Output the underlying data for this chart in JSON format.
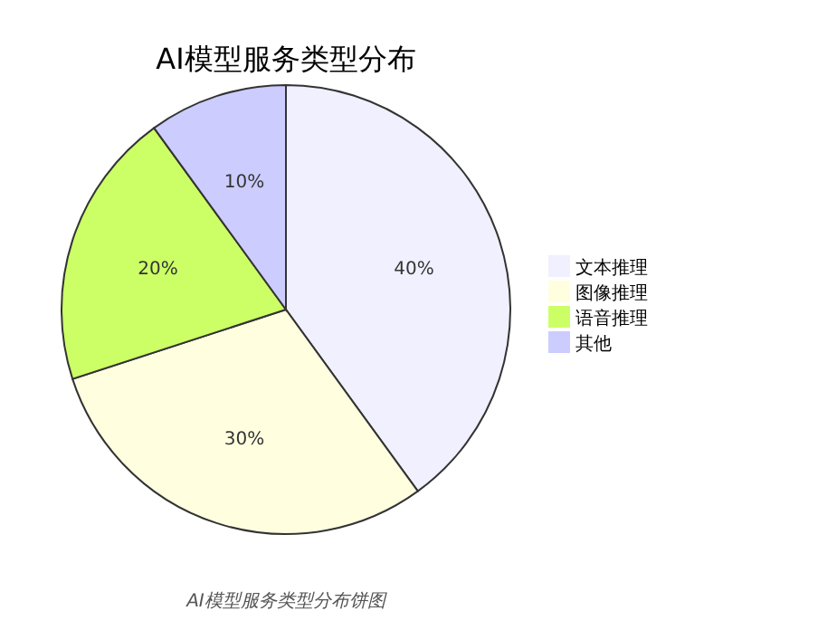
{
  "chart_data": {
    "type": "pie",
    "title": "AI模型服务类型分布",
    "categories": [
      "文本推理",
      "图像推理",
      "语音推理",
      "其他"
    ],
    "values": [
      40,
      30,
      20,
      10
    ],
    "colors": [
      "#f0f0ff",
      "#ffffe0",
      "#ccff66",
      "#ccccff"
    ],
    "value_labels": [
      "40%",
      "30%",
      "20%",
      "10%"
    ],
    "legend": "right",
    "annotations": [
      "AI模型服务类型分布饼图"
    ]
  }
}
